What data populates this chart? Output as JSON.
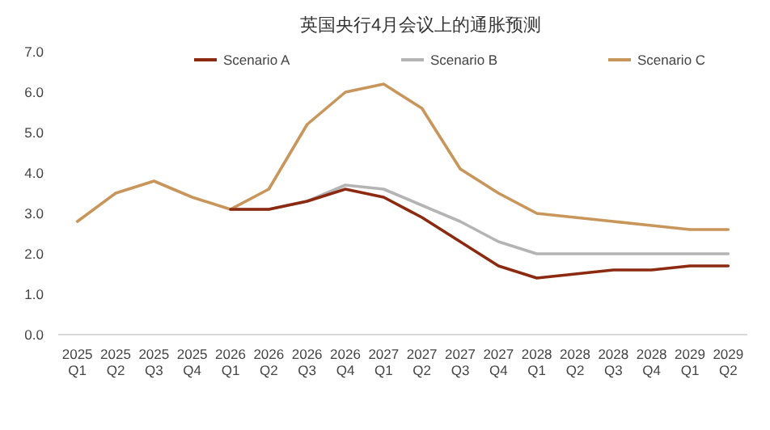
{
  "chart_data": {
    "type": "line",
    "title": "英国央行4月会议上的通胀预测",
    "categories": [
      "2025 Q1",
      "2025 Q2",
      "2025 Q3",
      "2025 Q4",
      "2026 Q1",
      "2026 Q2",
      "2026 Q3",
      "2026 Q4",
      "2027 Q1",
      "2027 Q2",
      "2027 Q3",
      "2027 Q4",
      "2028 Q1",
      "2028 Q2",
      "2028 Q3",
      "2028 Q4",
      "2029 Q1",
      "2029 Q2"
    ],
    "series": [
      {
        "name": "Scenario A",
        "color": "#8b2a10",
        "values": [
          null,
          null,
          null,
          null,
          3.1,
          3.1,
          3.3,
          3.6,
          3.4,
          2.9,
          2.3,
          1.7,
          1.4,
          1.5,
          1.6,
          1.6,
          1.7,
          1.7
        ]
      },
      {
        "name": "Scenario B",
        "color": "#b4b4b4",
        "values": [
          null,
          null,
          null,
          null,
          3.1,
          3.1,
          3.3,
          3.7,
          3.6,
          3.2,
          2.8,
          2.3,
          2.0,
          2.0,
          2.0,
          2.0,
          2.0,
          2.0
        ]
      },
      {
        "name": "Scenario C",
        "color": "#c8955a",
        "values": [
          2.8,
          3.5,
          3.8,
          3.4,
          3.1,
          3.6,
          5.2,
          6.0,
          6.2,
          5.6,
          4.1,
          3.5,
          3.0,
          2.9,
          2.8,
          2.7,
          2.6,
          2.6
        ]
      }
    ],
    "ylim": [
      0,
      7
    ],
    "yticks": [
      {
        "value": 0,
        "label": "0.0"
      },
      {
        "value": 1,
        "label": "1.0"
      },
      {
        "value": 2,
        "label": "2.0"
      },
      {
        "value": 3,
        "label": "3.0"
      },
      {
        "value": 4,
        "label": "4.0"
      },
      {
        "value": 5,
        "label": "5.0"
      },
      {
        "value": 6,
        "label": "6.0"
      },
      {
        "value": 7,
        "label": "7.0"
      }
    ],
    "grid": false,
    "legend": "top",
    "marker": "none",
    "line_style": "solid"
  }
}
